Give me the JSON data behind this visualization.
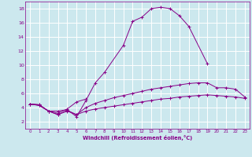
{
  "xlabel": "Windchill (Refroidissement éolien,°C)",
  "background_color": "#cce8ee",
  "grid_color": "#ffffff",
  "line_color": "#880088",
  "xlim": [
    -0.5,
    23.5
  ],
  "ylim": [
    1,
    19
  ],
  "yticks": [
    2,
    4,
    6,
    8,
    10,
    12,
    14,
    16,
    18
  ],
  "xticks": [
    0,
    1,
    2,
    3,
    4,
    5,
    6,
    7,
    8,
    9,
    10,
    11,
    12,
    13,
    14,
    15,
    16,
    17,
    18,
    19,
    20,
    21,
    22,
    23
  ],
  "curve1_x": [
    0,
    1,
    2,
    3,
    4,
    5,
    6,
    7,
    8,
    10,
    11,
    12,
    13,
    14,
    15,
    16,
    17,
    19
  ],
  "curve1_y": [
    4.5,
    4.4,
    3.5,
    3.5,
    3.7,
    2.7,
    5.0,
    7.5,
    9.0,
    12.8,
    16.2,
    16.8,
    18.0,
    18.2,
    18.0,
    17.0,
    15.5,
    10.2
  ],
  "curve2_x": [
    0,
    1,
    2,
    3,
    4,
    5,
    6
  ],
  "curve2_y": [
    4.5,
    4.4,
    3.5,
    3.2,
    3.8,
    4.8,
    5.2
  ],
  "curve3_x": [
    0,
    1,
    2,
    3,
    4,
    5,
    6,
    7,
    8,
    9,
    10,
    11,
    12,
    13,
    14,
    15,
    16,
    17,
    18,
    19,
    20,
    21,
    22,
    23
  ],
  "curve3_y": [
    4.5,
    4.3,
    3.5,
    3.0,
    3.6,
    3.0,
    4.0,
    4.6,
    5.0,
    5.4,
    5.7,
    6.0,
    6.3,
    6.6,
    6.8,
    7.0,
    7.2,
    7.4,
    7.5,
    7.5,
    6.8,
    6.8,
    6.6,
    5.5
  ],
  "curve4_x": [
    0,
    1,
    2,
    3,
    4,
    5,
    6,
    7,
    8,
    9,
    10,
    11,
    12,
    13,
    14,
    15,
    16,
    17,
    18,
    19,
    20,
    21,
    22,
    23
  ],
  "curve4_y": [
    4.5,
    4.3,
    3.5,
    3.0,
    3.5,
    3.0,
    3.5,
    3.8,
    4.0,
    4.2,
    4.4,
    4.6,
    4.8,
    5.0,
    5.2,
    5.3,
    5.5,
    5.6,
    5.7,
    5.8,
    5.7,
    5.6,
    5.5,
    5.3
  ]
}
